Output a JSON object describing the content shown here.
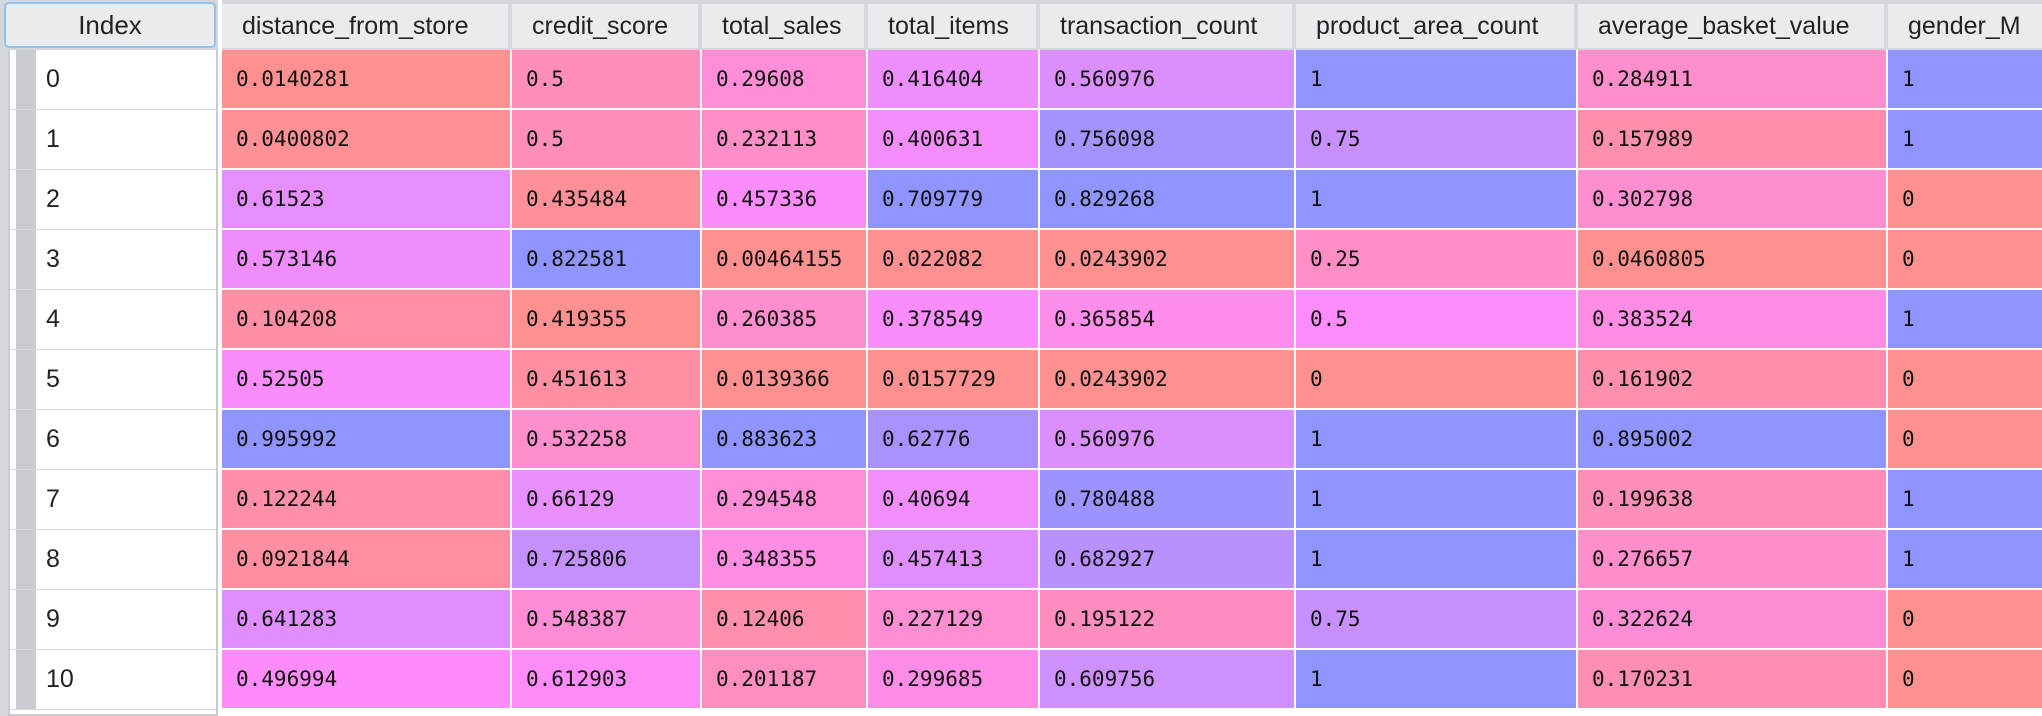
{
  "index_label": "Index",
  "columns": [
    "distance_from_store",
    "credit_score",
    "total_sales",
    "total_items",
    "transaction_count",
    "product_area_count",
    "average_basket_value",
    "gender_M"
  ],
  "rows": [
    {
      "index": "0",
      "values": [
        "0.0140281",
        "0.5",
        "0.29608",
        "0.416404",
        "0.560976",
        "1",
        "0.284911",
        "1"
      ]
    },
    {
      "index": "1",
      "values": [
        "0.0400802",
        "0.5",
        "0.232113",
        "0.400631",
        "0.756098",
        "0.75",
        "0.157989",
        "1"
      ]
    },
    {
      "index": "2",
      "values": [
        "0.61523",
        "0.435484",
        "0.457336",
        "0.709779",
        "0.829268",
        "1",
        "0.302798",
        "0"
      ]
    },
    {
      "index": "3",
      "values": [
        "0.573146",
        "0.822581",
        "0.00464155",
        "0.022082",
        "0.0243902",
        "0.25",
        "0.0460805",
        "0"
      ]
    },
    {
      "index": "4",
      "values": [
        "0.104208",
        "0.419355",
        "0.260385",
        "0.378549",
        "0.365854",
        "0.5",
        "0.383524",
        "1"
      ]
    },
    {
      "index": "5",
      "values": [
        "0.52505",
        "0.451613",
        "0.0139366",
        "0.0157729",
        "0.0243902",
        "0",
        "0.161902",
        "0"
      ]
    },
    {
      "index": "6",
      "values": [
        "0.995992",
        "0.532258",
        "0.883623",
        "0.62776",
        "0.560976",
        "1",
        "0.895002",
        "0"
      ]
    },
    {
      "index": "7",
      "values": [
        "0.122244",
        "0.66129",
        "0.294548",
        "0.40694",
        "0.780488",
        "1",
        "0.199638",
        "1"
      ]
    },
    {
      "index": "8",
      "values": [
        "0.0921844",
        "0.725806",
        "0.348355",
        "0.457413",
        "0.682927",
        "1",
        "0.276657",
        "1"
      ]
    },
    {
      "index": "9",
      "values": [
        "0.641283",
        "0.548387",
        "0.12406",
        "0.227129",
        "0.195122",
        "0.75",
        "0.322624",
        "0"
      ]
    },
    {
      "index": "10",
      "values": [
        "0.496994",
        "0.612903",
        "0.201187",
        "0.299685",
        "0.609756",
        "1",
        "0.170231",
        "0"
      ]
    }
  ],
  "colormap": {
    "low": "#ff9090",
    "mid": "#ff8cfc",
    "high": "#9094ff"
  }
}
